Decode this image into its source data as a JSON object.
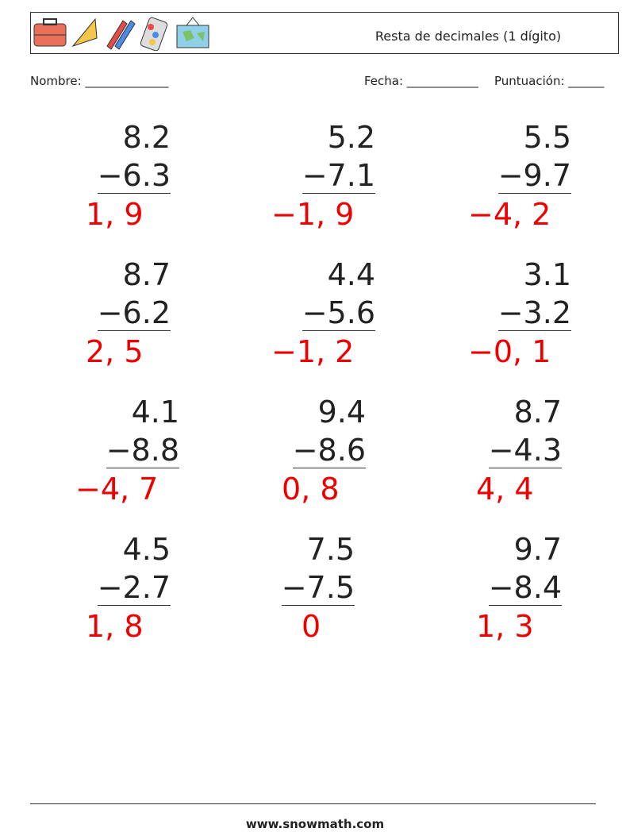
{
  "header": {
    "title": "Resta de decimales (1 dígito)"
  },
  "fields": {
    "name": "Nombre: ______________",
    "date": "Fecha: ____________",
    "score": "Puntuación: ______"
  },
  "problems": [
    {
      "a": "8.2",
      "b": "−6.3",
      "answer": "1, 9"
    },
    {
      "a": "5.2",
      "b": "−7.1",
      "answer": "−1, 9"
    },
    {
      "a": "5.5",
      "b": "−9.7",
      "answer": "−4, 2"
    },
    {
      "a": "8.7",
      "b": "−6.2",
      "answer": "2, 5"
    },
    {
      "a": "4.4",
      "b": "−5.6",
      "answer": "−1, 2"
    },
    {
      "a": "3.1",
      "b": "−3.2",
      "answer": "−0, 1"
    },
    {
      "a": "4.1",
      "b": "−8.8",
      "answer": "−4, 7"
    },
    {
      "a": "9.4",
      "b": "−8.6",
      "answer": "0, 8"
    },
    {
      "a": "8.7",
      "b": "−4.3",
      "answer": "4, 4"
    },
    {
      "a": "4.5",
      "b": "−2.7",
      "answer": "1, 8"
    },
    {
      "a": "7.5",
      "b": "−7.5",
      "answer": "0"
    },
    {
      "a": "9.7",
      "b": "−8.4",
      "answer": "1, 3"
    }
  ],
  "footer": {
    "site": "www.snowmath.com"
  }
}
